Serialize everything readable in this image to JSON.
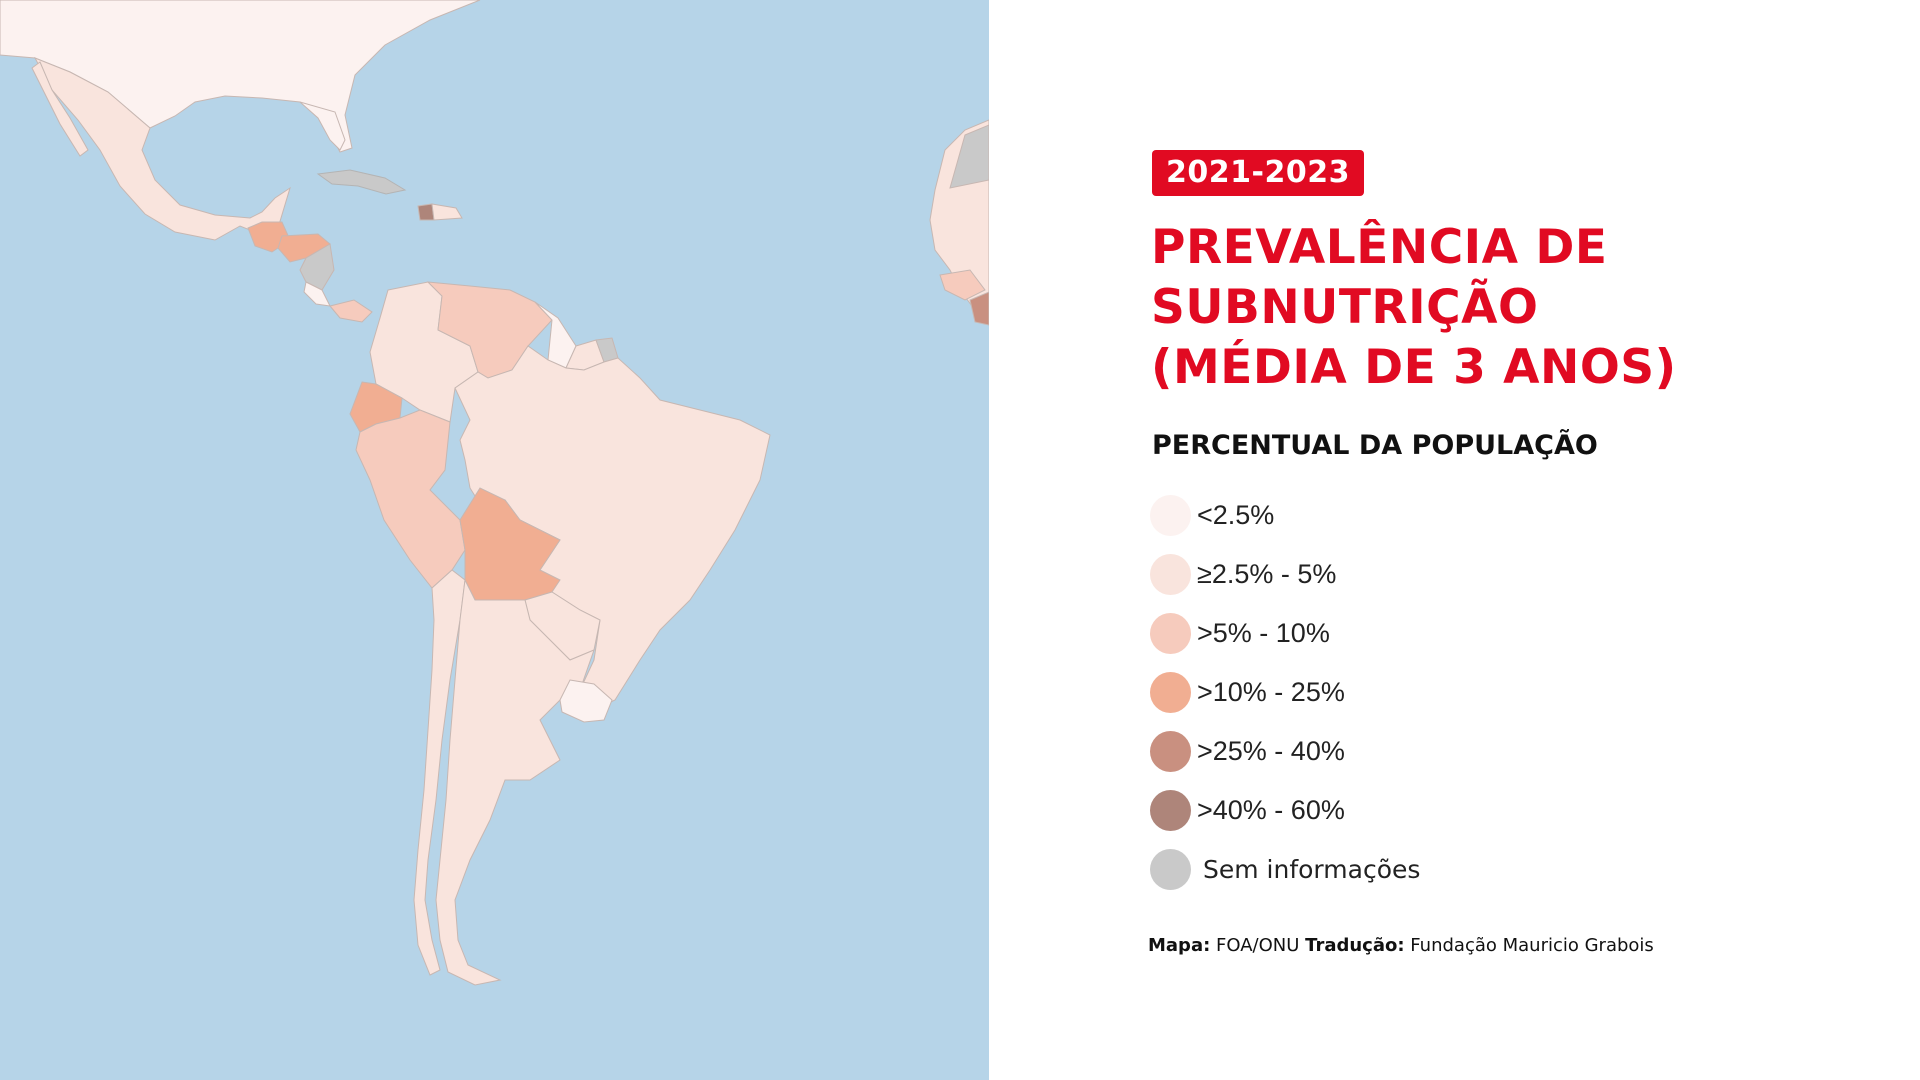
{
  "period": "2021-2023",
  "title_lines": [
    "PREVALÊNCIA DE",
    "SUBNUTRIÇÃO",
    "(MÉDIA DE 3 ANOS)"
  ],
  "subtitle": "PERCENTUAL DA POPULAÇÃO",
  "legend": [
    {
      "label": "<2.5%",
      "color": "#fcf2f0"
    },
    {
      "label": "≥2.5% - 5%",
      "color": "#f9e4dd"
    },
    {
      "label": ">5% - 10%",
      "color": "#f6cbbd"
    },
    {
      "label": ">10% - 25%",
      "color": "#f1ae92"
    },
    {
      "label": ">25% - 40%",
      "color": "#c99080"
    },
    {
      "label": ">40% - 60%",
      "color": "#ae857a"
    },
    {
      "label": "Sem informações",
      "color": "#c9c9c9"
    }
  ],
  "source": {
    "map_label": "Mapa:",
    "map_value": "FOA/ONU",
    "translation_label": "Tradução:",
    "translation_value": "Fundação Mauricio Grabois"
  },
  "colors": {
    "accent": "#e10a22",
    "ocean": "#b6d4e8",
    "border": "#c7b7b2"
  }
}
